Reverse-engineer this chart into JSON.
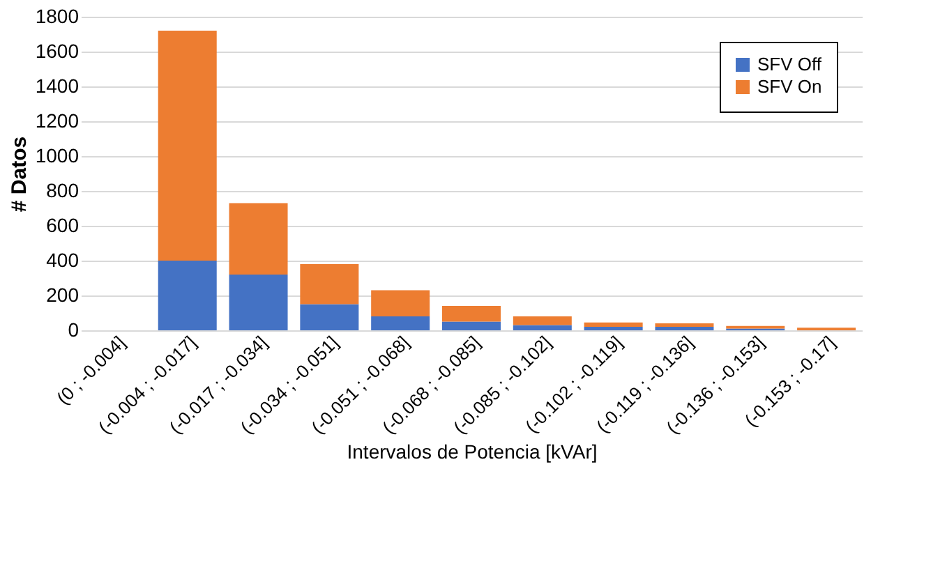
{
  "chart_data": {
    "type": "bar",
    "stacked": true,
    "xlabel": "Intervalos de Potencia [kVAr]",
    "ylabel": "# Datos",
    "categories": [
      "(0 ; -0.004]",
      "(-0.004 ; -0.017]",
      "(-0.017 ; -0.034]",
      "(-0.034 ; -0.051]",
      "(-0.051 ; -0.068]",
      "(-0.068 ; -0.085]",
      "(-0.085 ; -0.102]",
      "(-0.102 ; -0.119]",
      "(-0.119 ; -0.136]",
      "(-0.136 ; -0.153]",
      "(-0.153 ; -0.17]"
    ],
    "series": [
      {
        "name": "SFV Off",
        "color": "#4472c4",
        "values": [
          0,
          400,
          320,
          150,
          80,
          50,
          30,
          20,
          20,
          10,
          0
        ]
      },
      {
        "name": "SFV On",
        "color": "#ed7d31",
        "values": [
          0,
          1320,
          410,
          230,
          150,
          90,
          50,
          25,
          20,
          15,
          15
        ]
      }
    ],
    "ylim": [
      0,
      1800
    ],
    "yticks": [
      0,
      200,
      400,
      600,
      800,
      1000,
      1200,
      1400,
      1600,
      1800
    ],
    "grid": "y",
    "legend": "top right"
  }
}
